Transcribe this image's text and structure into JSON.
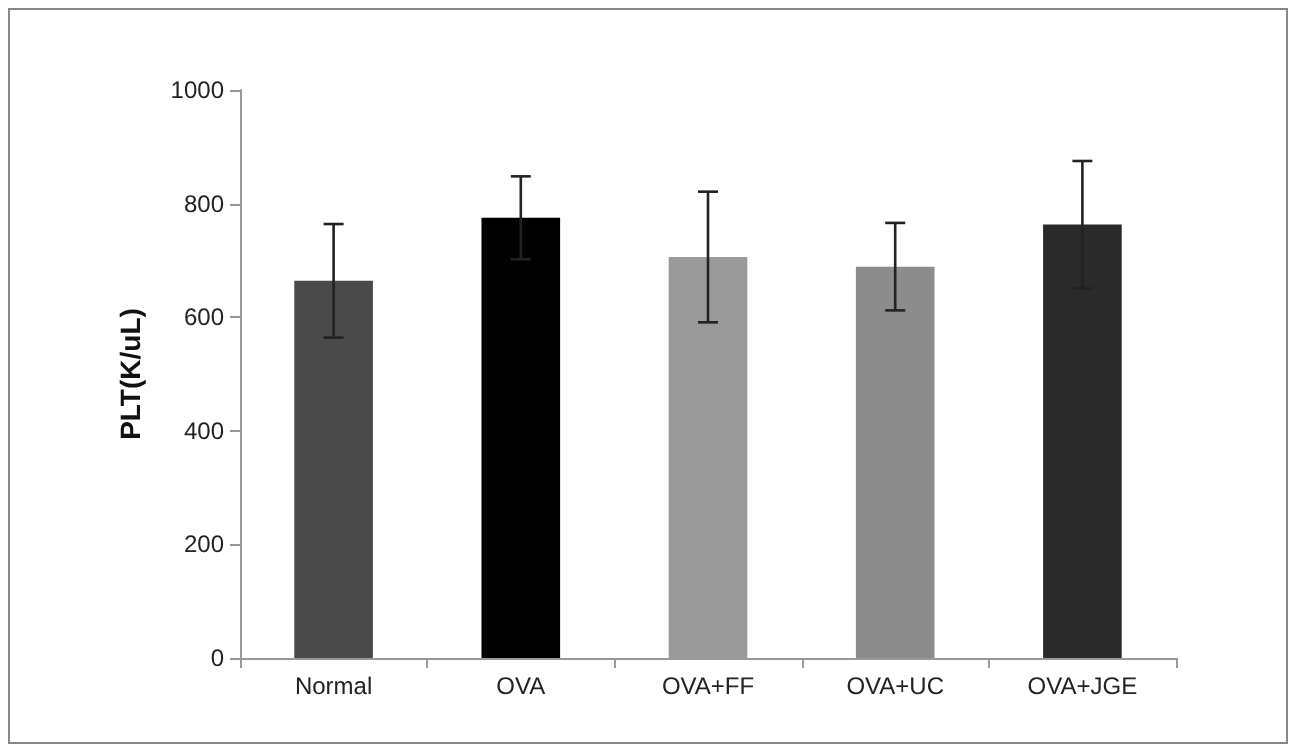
{
  "chart_data": {
    "type": "bar",
    "ylabel": "PLT(K/uL)",
    "categories": [
      "Normal",
      "OVA",
      "OVA+FF",
      "OVA+UC",
      "OVA+JGE"
    ],
    "values": [
      664,
      775,
      706,
      689,
      763
    ],
    "errors": [
      100,
      73,
      115,
      77,
      112
    ],
    "colors": [
      "#4a4a4a",
      "#000000",
      "#9a9a9a",
      "#8c8c8c",
      "#2a2a2a"
    ],
    "ylim": [
      0,
      1000
    ],
    "yticks": [
      0,
      200,
      400,
      600,
      800,
      1000
    ],
    "grid": false
  }
}
